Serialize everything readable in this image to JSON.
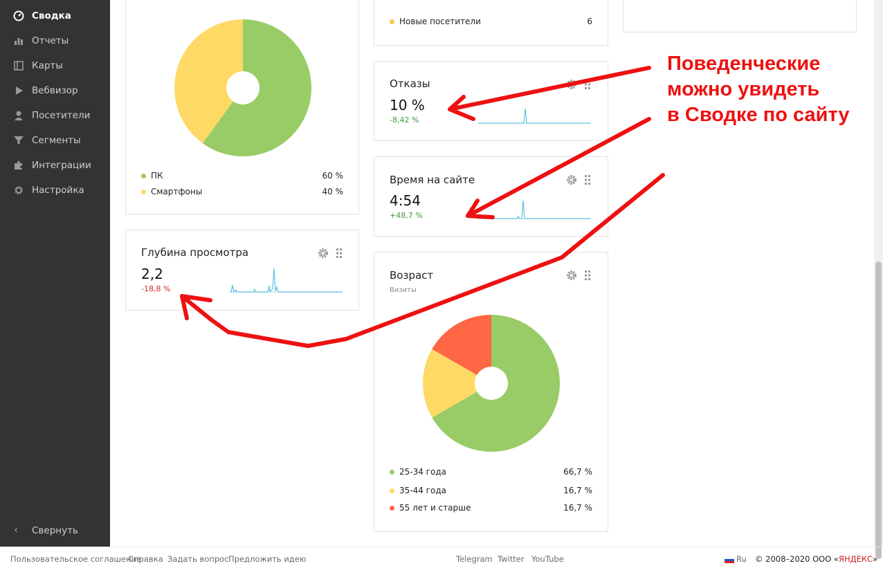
{
  "sidebar": {
    "items": [
      {
        "label": "Сводка",
        "icon": "gauge-icon",
        "active": true
      },
      {
        "label": "Отчеты",
        "icon": "bar-chart-icon"
      },
      {
        "label": "Карты",
        "icon": "map-icon"
      },
      {
        "label": "Вебвизор",
        "icon": "play-icon"
      },
      {
        "label": "Посетители",
        "icon": "user-icon"
      },
      {
        "label": "Сегменты",
        "icon": "filter-icon"
      },
      {
        "label": "Интеграции",
        "icon": "puzzle-icon"
      },
      {
        "label": "Настройка",
        "icon": "gear-icon"
      }
    ],
    "collapse_label": "Свернуть"
  },
  "devices": {
    "legend": [
      {
        "name": "ПК",
        "pct": "60 %",
        "color": "#99cc66"
      },
      {
        "name": "Смартфоны",
        "pct": "40 %",
        "color": "#ffd966"
      }
    ],
    "values": [
      60,
      40
    ]
  },
  "depth": {
    "title": "Глубина просмотра",
    "value": "2,2",
    "delta": "-18,8 %"
  },
  "visitors_partial": {
    "legend_name": "Новые посетители",
    "legend_value": "6",
    "legend_color": "#f2c94c"
  },
  "bounce": {
    "title": "Отказы",
    "value": "10 %",
    "delta": "-8,42 %"
  },
  "time": {
    "title": "Время на сайте",
    "value": "4:54",
    "delta": "+48,7 %"
  },
  "age": {
    "title": "Возраст",
    "subtitle": "Визиты",
    "legend": [
      {
        "name": "25-34 года",
        "pct": "66,7 %",
        "color": "#99cc66"
      },
      {
        "name": "35-44 года",
        "pct": "16,7 %",
        "color": "#ffd966"
      },
      {
        "name": "55 лет и старше",
        "pct": "16,7 %",
        "color": "#ff6644"
      }
    ],
    "values": [
      66.7,
      16.7,
      16.7
    ]
  },
  "annotation": {
    "lines": [
      "Поведенческие",
      "можно увидеть",
      "в Сводке по сайту"
    ],
    "color": "#ee1111"
  },
  "footer": {
    "links_left": [
      "Пользовательское соглашение",
      "Справка",
      "Задать вопрос",
      "Предложить идею"
    ],
    "links_center": [
      "Telegram",
      "Twitter",
      "YouTube"
    ],
    "lang": "Ru",
    "copyright_prefix": "© 2008–2020 ООО «",
    "copyright_brand": "ЯНДЕКС",
    "copyright_suffix": "»"
  },
  "colors": {
    "sidebar_bg": "#333333",
    "accent_green": "#3d9b35",
    "accent_red": "#d42b2b",
    "sparkline": "#5bc0de"
  }
}
